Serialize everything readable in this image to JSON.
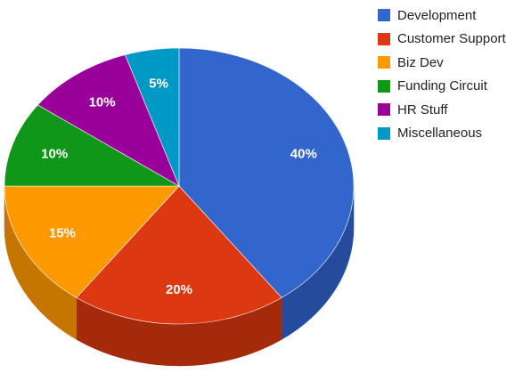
{
  "chart_data": {
    "type": "pie",
    "style": "3d",
    "title": "",
    "legend_position": "right",
    "categories": [
      "Development",
      "Customer Support",
      "Biz Dev",
      "Funding Circuit",
      "HR Stuff",
      "Miscellaneous"
    ],
    "values": [
      40,
      20,
      15,
      10,
      10,
      5
    ],
    "value_labels": [
      "40%",
      "20%",
      "15%",
      "10%",
      "10%",
      "5%"
    ],
    "colors": [
      "#3366cc",
      "#dc3912",
      "#ff9900",
      "#109618",
      "#990099",
      "#0099c6"
    ],
    "side_colors": [
      "#254c9c",
      "#a52a0b",
      "#c47600",
      "#0c7012",
      "#720072",
      "#007596"
    ]
  }
}
